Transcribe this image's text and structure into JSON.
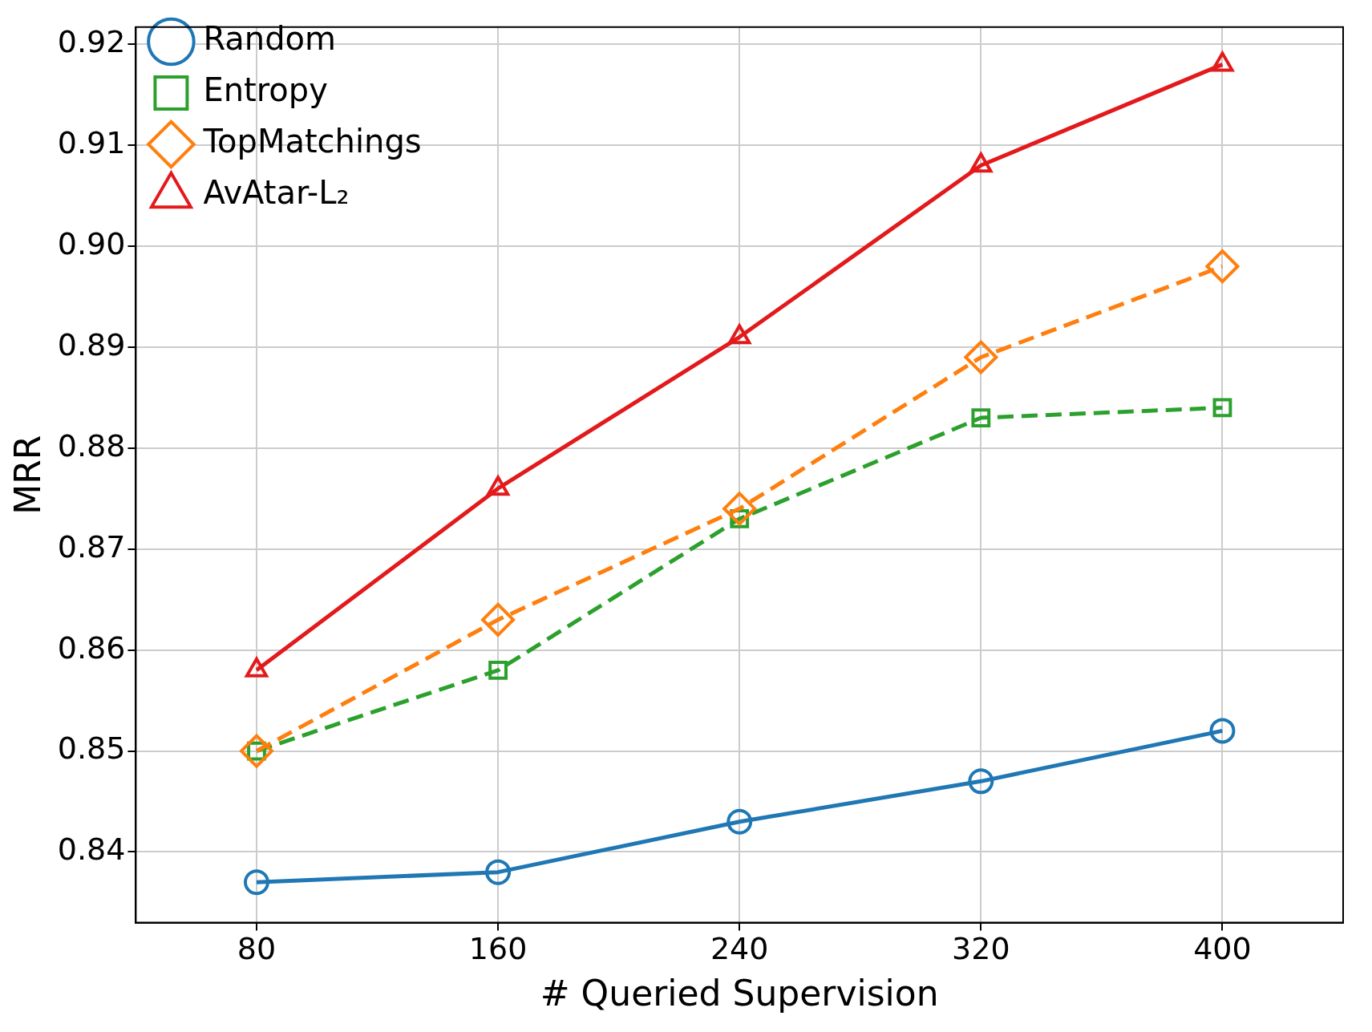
{
  "chart_data": {
    "type": "line",
    "xlabel": "# Queried Supervision",
    "ylabel": "MRR",
    "x": [
      80,
      160,
      240,
      320,
      400
    ],
    "series": [
      {
        "name": "Random",
        "color": "#1f77b4",
        "marker": "circle",
        "line_style": "solid",
        "values": [
          0.837,
          0.838,
          0.843,
          0.847,
          0.852
        ]
      },
      {
        "name": "Entropy",
        "color": "#2ca02c",
        "marker": "square",
        "line_style": "dashed",
        "values": [
          0.85,
          0.858,
          0.873,
          0.883,
          0.884
        ]
      },
      {
        "name": "TopMatchings",
        "color": "#ff7f0e",
        "marker": "diamond",
        "line_style": "dashed",
        "values": [
          0.85,
          0.863,
          0.874,
          0.889,
          0.898
        ]
      },
      {
        "name": "AvAtar-L₂",
        "color": "#e31a1c",
        "marker": "triangle",
        "line_style": "solid",
        "values": [
          0.858,
          0.876,
          0.891,
          0.908,
          0.918
        ]
      }
    ],
    "xlim": [
      40,
      440
    ],
    "xticks": [
      80,
      160,
      240,
      320,
      400
    ],
    "ylim": [
      0.833,
      0.9217
    ],
    "yticks": [
      0.84,
      0.85,
      0.86,
      0.87,
      0.88,
      0.89,
      {
        "value": 0.9,
        "label": "0.90"
      },
      0.91,
      0.92
    ],
    "grid": true,
    "legend": "top left"
  }
}
